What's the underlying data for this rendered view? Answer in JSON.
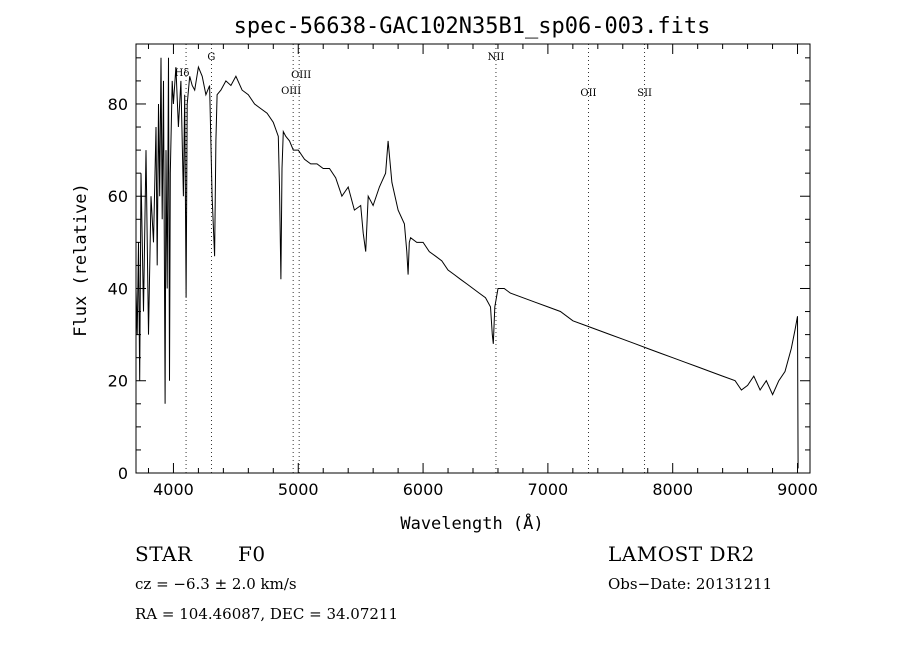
{
  "chart_data": {
    "type": "line",
    "title": "spec-56638-GAC102N35B1_sp06-003.fits",
    "xlabel": "Wavelength (Å)",
    "ylabel": "Flux (relative)",
    "xlim": [
      3700,
      9100
    ],
    "ylim": [
      0,
      93
    ],
    "xticks": [
      4000,
      5000,
      6000,
      7000,
      8000,
      9000
    ],
    "yticks": [
      0,
      20,
      40,
      60,
      80
    ],
    "grid": false,
    "line_color": "#000000",
    "x": [
      3700,
      3710,
      3720,
      3730,
      3740,
      3760,
      3780,
      3800,
      3820,
      3840,
      3860,
      3870,
      3880,
      3890,
      3900,
      3910,
      3920,
      3933,
      3940,
      3950,
      3960,
      3968,
      3975,
      3990,
      4000,
      4020,
      4040,
      4060,
      4080,
      4090,
      4101,
      4110,
      4130,
      4150,
      4170,
      4200,
      4230,
      4260,
      4290,
      4310,
      4330,
      4340,
      4350,
      4380,
      4420,
      4460,
      4500,
      4550,
      4600,
      4650,
      4700,
      4750,
      4800,
      4840,
      4850,
      4861,
      4870,
      4880,
      4900,
      4930,
      4960,
      5000,
      5050,
      5100,
      5150,
      5200,
      5250,
      5300,
      5350,
      5400,
      5450,
      5500,
      5520,
      5540,
      5560,
      5600,
      5650,
      5700,
      5720,
      5750,
      5800,
      5850,
      5870,
      5880,
      5890,
      5900,
      5950,
      6000,
      6050,
      6100,
      6150,
      6200,
      6250,
      6300,
      6350,
      6400,
      6450,
      6500,
      6540,
      6555,
      6563,
      6575,
      6600,
      6650,
      6700,
      6800,
      6900,
      7000,
      7100,
      7200,
      7300,
      7400,
      7500,
      7600,
      7700,
      7800,
      7900,
      8000,
      8100,
      8200,
      8300,
      8400,
      8500,
      8550,
      8600,
      8650,
      8700,
      8750,
      8800,
      8850,
      8900,
      8950,
      8980,
      9000,
      9005
    ],
    "y": [
      40,
      30,
      50,
      20,
      65,
      35,
      70,
      30,
      60,
      50,
      75,
      45,
      80,
      60,
      90,
      55,
      85,
      15,
      70,
      40,
      90,
      20,
      65,
      85,
      80,
      88,
      75,
      85,
      60,
      82,
      38,
      80,
      86,
      84,
      83,
      88,
      86,
      82,
      84,
      60,
      47,
      72,
      82,
      83,
      85,
      84,
      86,
      83,
      82,
      80,
      79,
      78,
      76,
      73,
      62,
      42,
      66,
      74,
      73,
      72,
      70,
      70,
      68,
      67,
      67,
      66,
      66,
      64,
      60,
      62,
      57,
      58,
      52,
      48,
      60,
      58,
      62,
      65,
      72,
      63,
      57,
      54,
      48,
      43,
      50,
      51,
      50,
      50,
      48,
      47,
      46,
      44,
      43,
      42,
      41,
      40,
      39,
      38,
      36,
      30,
      28,
      36,
      40,
      40,
      39,
      38,
      37,
      36,
      35,
      33,
      32,
      31,
      30,
      29,
      28,
      27,
      26,
      25,
      24,
      23,
      22,
      21,
      20,
      18,
      19,
      21,
      18,
      20,
      17,
      20,
      22,
      27,
      31,
      34,
      1
    ],
    "lines": [
      {
        "label": "Hδ",
        "x": 4101
      },
      {
        "label": "G",
        "x": 4304
      },
      {
        "label": "OIII",
        "x": 4959
      },
      {
        "label": "OIII",
        "x": 5007
      },
      {
        "label": "NII",
        "x": 6584
      },
      {
        "label": "OII",
        "x": 7325
      },
      {
        "label": "SII",
        "x": 7775
      }
    ]
  },
  "info": {
    "object_class": "STAR",
    "subclass": "F0",
    "survey": "LAMOST DR2",
    "cz": "cz = −6.3 ± 2.0 km/s",
    "obs_date": "Obs−Date: 20131211",
    "coords": "RA = 104.46087, DEC =  34.07211"
  }
}
